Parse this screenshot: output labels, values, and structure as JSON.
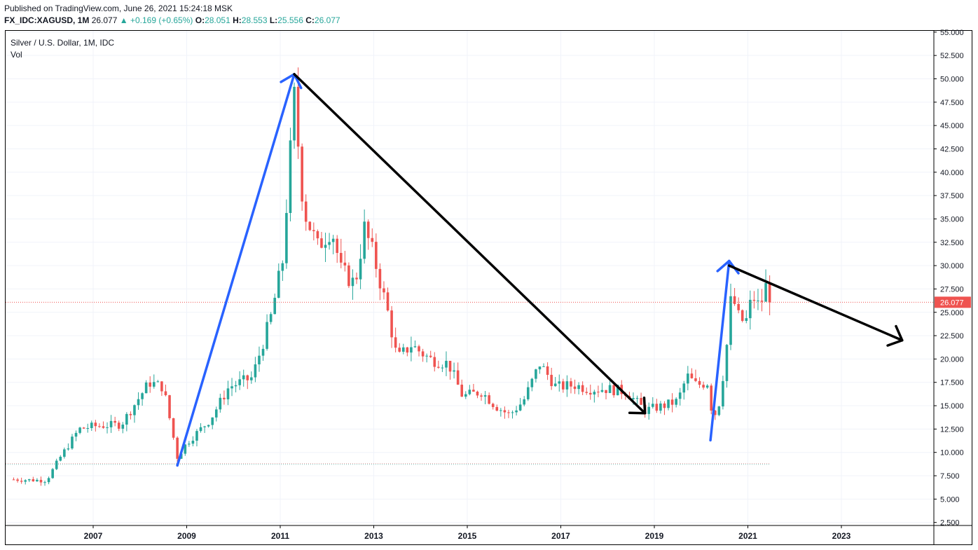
{
  "header": {
    "published": "Published on TradingView.com, June 26, 2021 15:24:18 MSK",
    "symbol": "FX_IDC:XAGUSD, 1M",
    "last": "26.077",
    "change_arrow": "▲",
    "change": "+0.169 (+0.65%)",
    "o_label": "O:",
    "o": "28.051",
    "h_label": "H:",
    "h": "28.553",
    "l_label": "L:",
    "l": "25.556",
    "c_label": "C:",
    "c": "26.077"
  },
  "legend": {
    "title": "Silver / U.S. Dollar, 1M, IDC",
    "indicator": "Vol"
  },
  "price_label": "26.077",
  "colors": {
    "up": "#26a69a",
    "down": "#ef5350",
    "blue_arrow": "#2962ff",
    "black_arrow": "#000000",
    "price_line": "#ef5350"
  },
  "chart_data": {
    "type": "candlestick",
    "title": "Silver / U.S. Dollar, 1M, IDC",
    "x_ticks": [
      "2007",
      "2009",
      "2011",
      "2013",
      "2015",
      "2017",
      "2019",
      "2021",
      "2023"
    ],
    "y_ticks": [
      "2.500",
      "5.000",
      "7.500",
      "10.000",
      "12.500",
      "15.000",
      "17.500",
      "20.000",
      "22.500",
      "25.000",
      "27.500",
      "30.000",
      "32.500",
      "35.000",
      "37.500",
      "40.000",
      "42.500",
      "45.000",
      "47.500",
      "50.000",
      "52.500",
      "55.000"
    ],
    "ylim": [
      2.5,
      55
    ],
    "current_price": 26.077,
    "support_line": 8.8,
    "anchors": [
      [
        2005.3,
        7.1
      ],
      [
        2006.0,
        7.0
      ],
      [
        2006.3,
        9.5
      ],
      [
        2006.7,
        12.5
      ],
      [
        2007.0,
        12.8
      ],
      [
        2007.6,
        13.0
      ],
      [
        2008.2,
        17.5
      ],
      [
        2008.5,
        17.0
      ],
      [
        2008.8,
        9.5
      ],
      [
        2009.0,
        11.0
      ],
      [
        2009.5,
        13.5
      ],
      [
        2009.9,
        17.0
      ],
      [
        2010.4,
        18.0
      ],
      [
        2010.8,
        24.5
      ],
      [
        2011.05,
        30.5
      ],
      [
        2011.3,
        48.0
      ],
      [
        2011.5,
        36.0
      ],
      [
        2011.8,
        32.0
      ],
      [
        2012.1,
        34.0
      ],
      [
        2012.3,
        29.5
      ],
      [
        2012.6,
        28.0
      ],
      [
        2012.8,
        34.0
      ],
      [
        2013.0,
        31.0
      ],
      [
        2013.3,
        25.0
      ],
      [
        2013.5,
        20.0
      ],
      [
        2013.8,
        21.5
      ],
      [
        2014.2,
        20.0
      ],
      [
        2014.6,
        19.5
      ],
      [
        2014.9,
        16.0
      ],
      [
        2015.3,
        16.5
      ],
      [
        2015.6,
        15.0
      ],
      [
        2015.9,
        14.0
      ],
      [
        2016.2,
        15.5
      ],
      [
        2016.55,
        19.5
      ],
      [
        2016.9,
        17.0
      ],
      [
        2017.3,
        17.2
      ],
      [
        2017.6,
        16.8
      ],
      [
        2018.0,
        16.8
      ],
      [
        2018.4,
        16.5
      ],
      [
        2018.8,
        14.5
      ],
      [
        2019.2,
        15.0
      ],
      [
        2019.5,
        15.5
      ],
      [
        2019.7,
        18.2
      ],
      [
        2019.9,
        17.2
      ],
      [
        2020.15,
        17.5
      ],
      [
        2020.25,
        13.5
      ],
      [
        2020.4,
        15.5
      ],
      [
        2020.55,
        21.5
      ],
      [
        2020.65,
        27.0
      ],
      [
        2020.8,
        24.5
      ],
      [
        2020.95,
        23.8
      ],
      [
        2021.1,
        26.8
      ],
      [
        2021.25,
        25.5
      ],
      [
        2021.4,
        28.0
      ],
      [
        2021.48,
        26.077
      ]
    ],
    "annotations": [
      {
        "kind": "arrow",
        "color": "blue",
        "from": [
          2008.8,
          8.6
        ],
        "to": [
          2011.3,
          50.5
        ]
      },
      {
        "kind": "arrow",
        "color": "black",
        "from": [
          2011.3,
          50.5
        ],
        "to": [
          2018.8,
          14.2
        ]
      },
      {
        "kind": "arrow",
        "color": "blue",
        "from": [
          2020.2,
          11.3
        ],
        "to": [
          2020.6,
          30.5
        ]
      },
      {
        "kind": "arrow",
        "color": "black",
        "from": [
          2020.6,
          30.0
        ],
        "to": [
          2024.3,
          22.0
        ]
      }
    ]
  }
}
